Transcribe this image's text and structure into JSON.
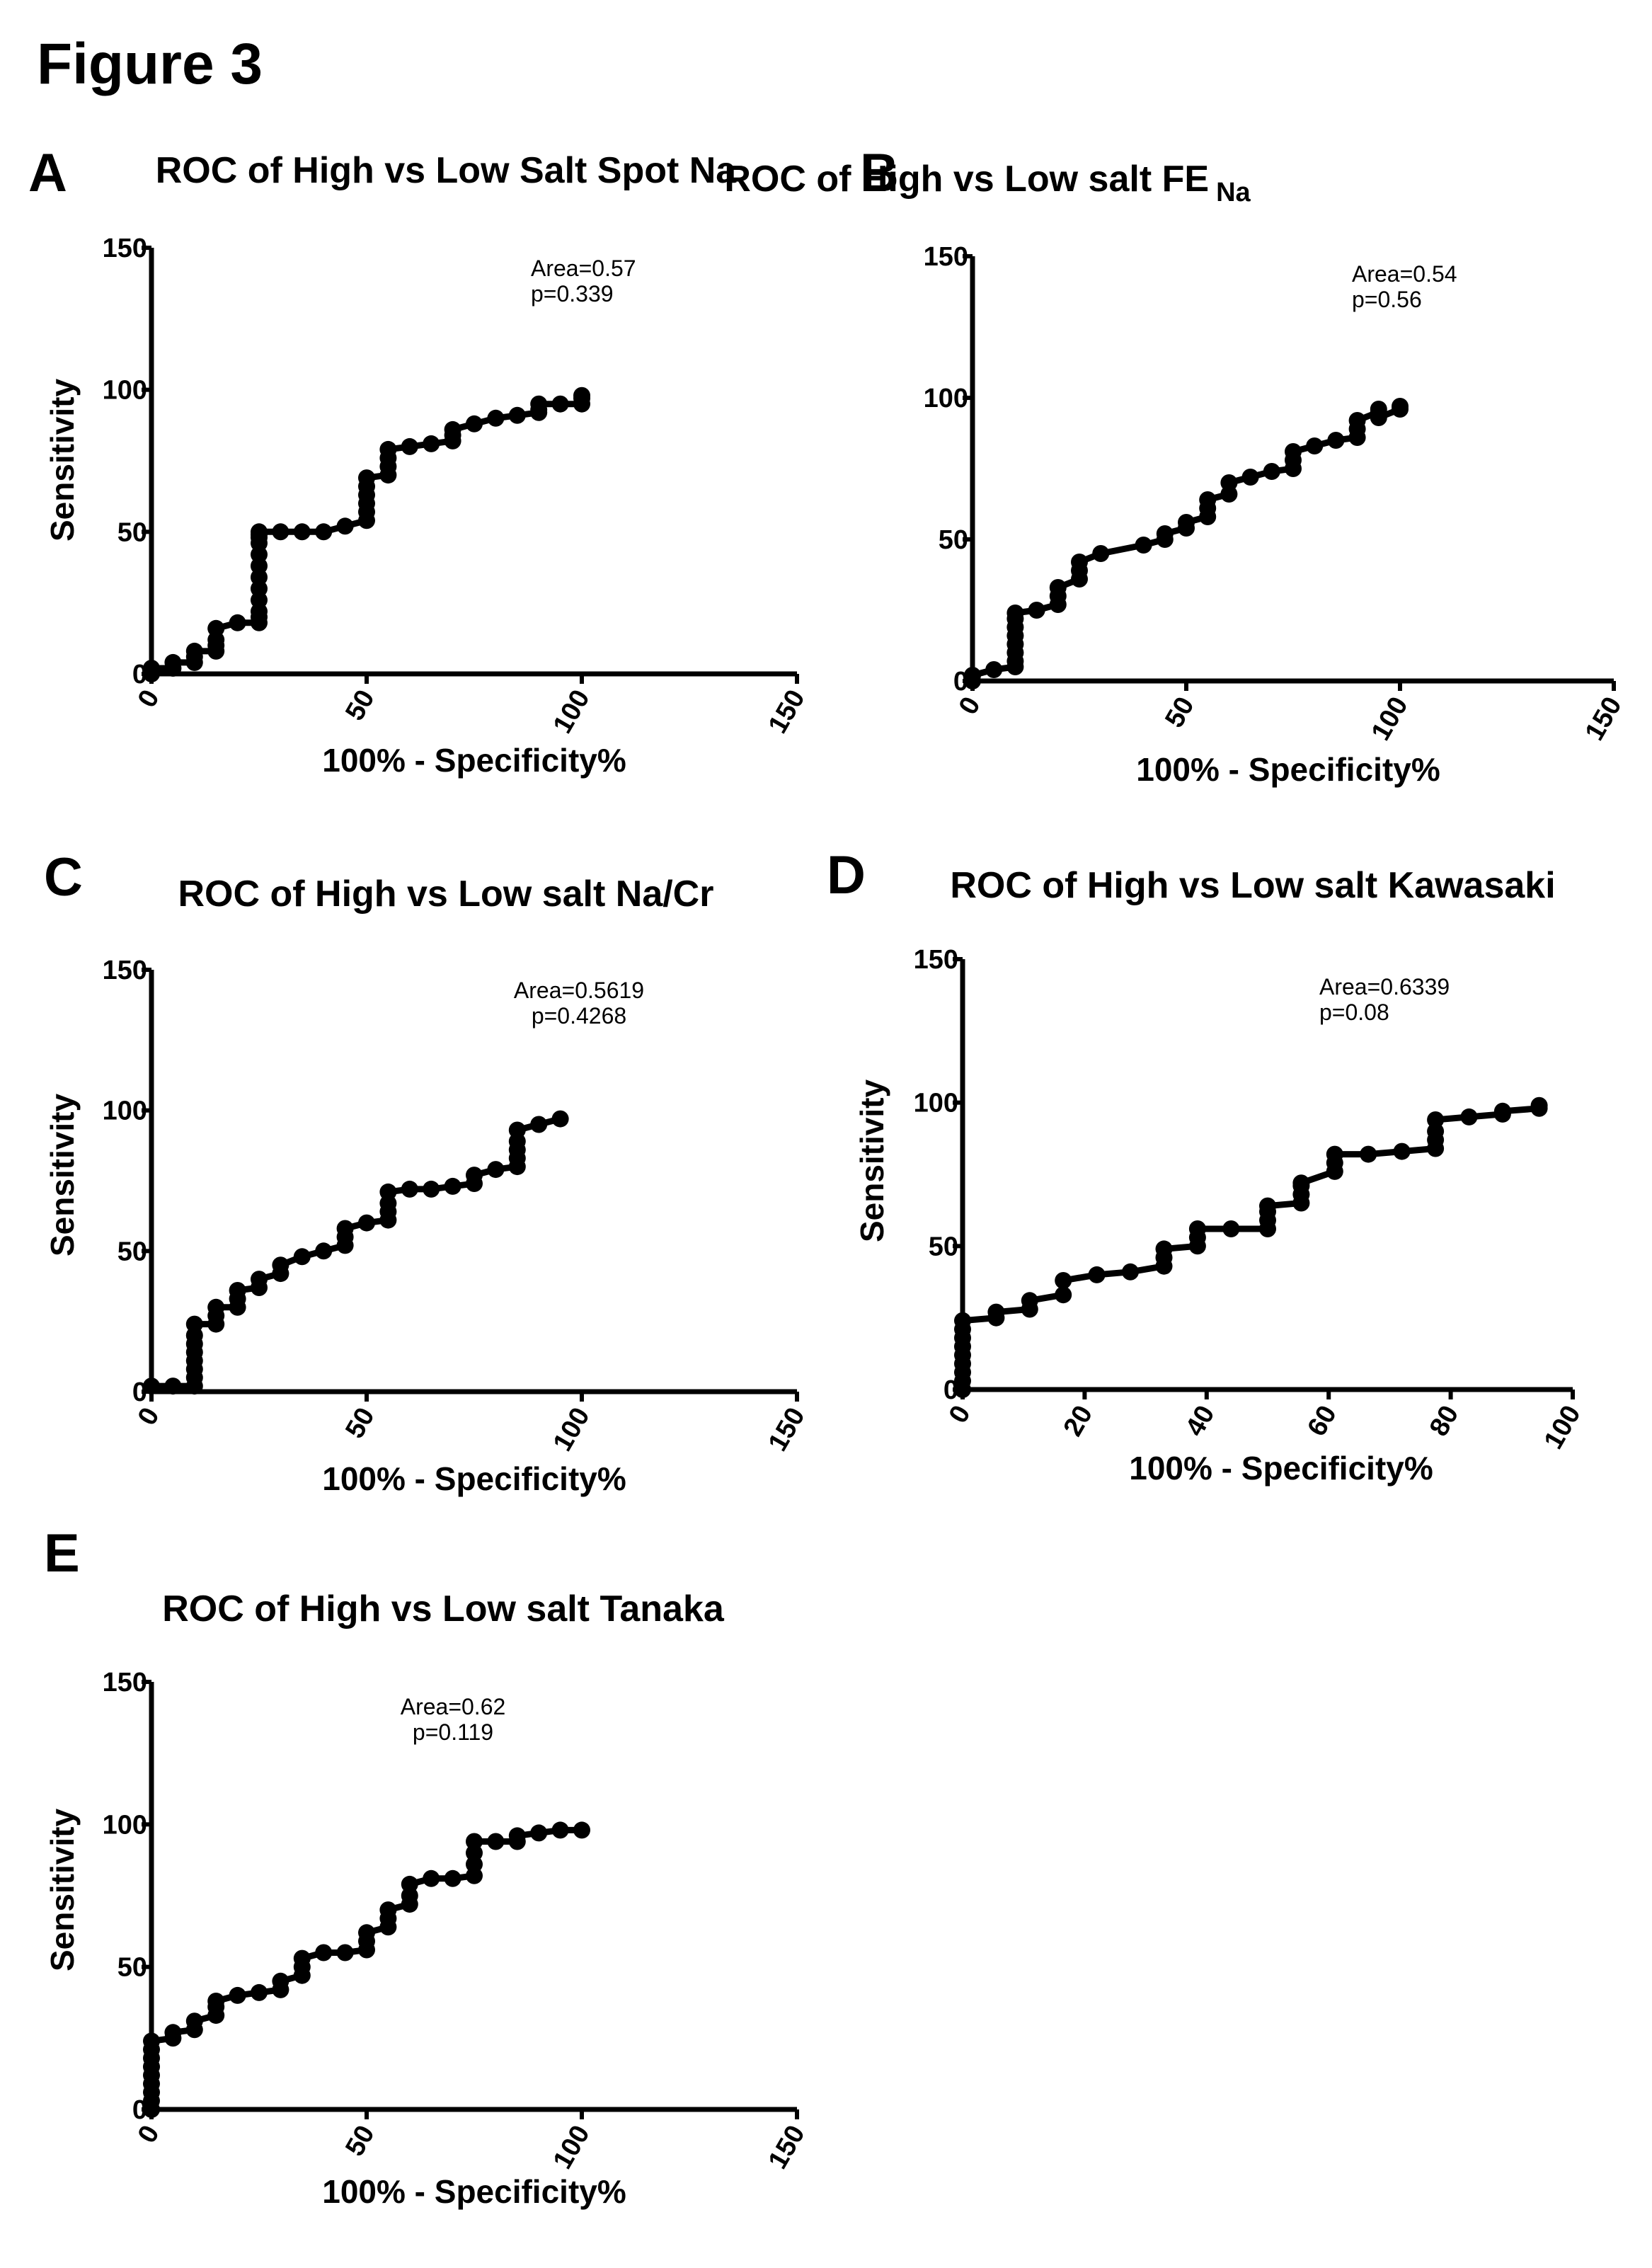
{
  "figure_title": "Figure 3",
  "chart_data": [
    {
      "panel": "A",
      "type": "line",
      "title": "ROC of High vs Low Salt Spot Na",
      "title_sub": "",
      "xlabel": "100% - Specificity%",
      "ylabel": "Sensitivity",
      "xlim": [
        0,
        150
      ],
      "ylim": [
        0,
        150
      ],
      "xticks": [
        0,
        50,
        100,
        150
      ],
      "yticks": [
        0,
        50,
        100,
        150
      ],
      "annotations": [
        "Area=0.57",
        "p=0.339"
      ],
      "series": [
        {
          "x": [
            0,
            0,
            5,
            5,
            10,
            10,
            10,
            15,
            15,
            15,
            15,
            20,
            25,
            25,
            25,
            25,
            25,
            25,
            25,
            25,
            25,
            25,
            25,
            25,
            30,
            35,
            40,
            45,
            50,
            50,
            50,
            50,
            50,
            50,
            55,
            55,
            55,
            55,
            60,
            65,
            70,
            70,
            70,
            75,
            80,
            85,
            90,
            90,
            90,
            95,
            100,
            100,
            100
          ],
          "y": [
            0,
            2,
            2,
            4,
            4,
            6,
            8,
            8,
            10,
            12,
            16,
            18,
            18,
            20,
            22,
            26,
            30,
            34,
            38,
            42,
            46,
            48,
            49,
            50,
            50,
            50,
            50,
            52,
            54,
            57,
            60,
            63,
            66,
            69,
            70,
            73,
            76,
            79,
            80,
            81,
            82,
            84,
            86,
            88,
            90,
            91,
            92,
            93,
            95,
            95,
            95,
            97,
            98
          ]
        }
      ]
    },
    {
      "panel": "B",
      "type": "line",
      "title": "ROC of High vs Low salt FE",
      "title_sub": "Na",
      "xlabel": "100% - Specificity%",
      "ylabel": "",
      "xlim": [
        0,
        150
      ],
      "ylim": [
        0,
        150
      ],
      "xticks": [
        0,
        50,
        100,
        150
      ],
      "yticks": [
        0,
        50,
        100,
        150
      ],
      "annotations": [
        "Area=0.54",
        "p=0.56"
      ],
      "series": [
        {
          "x": [
            0,
            0,
            5,
            10,
            10,
            10,
            10,
            10,
            10,
            10,
            10,
            15,
            20,
            20,
            20,
            25,
            25,
            25,
            30,
            40,
            45,
            45,
            50,
            50,
            55,
            55,
            55,
            60,
            60,
            65,
            70,
            75,
            75,
            75,
            80,
            85,
            90,
            90,
            90,
            95,
            95,
            95,
            100,
            100
          ],
          "y": [
            0,
            2,
            4,
            5,
            7,
            10,
            13,
            16,
            19,
            22,
            24,
            25,
            27,
            30,
            33,
            36,
            39,
            42,
            45,
            48,
            50,
            52,
            54,
            56,
            58,
            61,
            64,
            66,
            70,
            72,
            74,
            75,
            78,
            81,
            83,
            85,
            86,
            89,
            92,
            95,
            96,
            93,
            96,
            97
          ]
        }
      ]
    },
    {
      "panel": "C",
      "type": "line",
      "title": "ROC of High vs Low salt Na/Cr",
      "title_sub": "",
      "xlabel": "100% - Specificity%",
      "ylabel": "Sensitivity",
      "xlim": [
        0,
        150
      ],
      "ylim": [
        0,
        150
      ],
      "xticks": [
        0,
        50,
        100,
        150
      ],
      "yticks": [
        0,
        50,
        100,
        150
      ],
      "annotations": [
        "Area=0.5619",
        "p=0.4268"
      ],
      "series": [
        {
          "x": [
            0,
            5,
            10,
            10,
            10,
            10,
            10,
            10,
            10,
            10,
            15,
            15,
            15,
            20,
            20,
            20,
            25,
            25,
            30,
            30,
            35,
            40,
            45,
            45,
            45,
            50,
            55,
            55,
            55,
            55,
            60,
            65,
            70,
            75,
            75,
            80,
            85,
            85,
            85,
            85,
            85,
            90,
            95
          ],
          "y": [
            2,
            2,
            2,
            5,
            8,
            11,
            14,
            17,
            20,
            24,
            24,
            27,
            30,
            30,
            33,
            36,
            37,
            40,
            42,
            45,
            48,
            50,
            52,
            55,
            58,
            60,
            61,
            64,
            67,
            71,
            72,
            72,
            73,
            74,
            77,
            79,
            80,
            83,
            86,
            89,
            93,
            95,
            97
          ]
        }
      ]
    },
    {
      "panel": "D",
      "type": "line",
      "title": "ROC of High vs Low salt Kawasaki",
      "title_sub": "",
      "xlabel": "100% - Specificity%",
      "ylabel": "Sensitivity",
      "xlim": [
        0,
        100
      ],
      "ylim": [
        0,
        150
      ],
      "xticks": [
        0,
        20,
        40,
        60,
        80,
        100
      ],
      "yticks": [
        0,
        50,
        100,
        150
      ],
      "annotations": [
        "Area=0.6339",
        "p=0.08"
      ],
      "series": [
        {
          "x": [
            0,
            0,
            0,
            0,
            0,
            0,
            0,
            0,
            0,
            5.5,
            5.5,
            11,
            11,
            16.5,
            16.5,
            22,
            27.5,
            33,
            33,
            33,
            38.5,
            38.5,
            38.5,
            44,
            50,
            50,
            50,
            50,
            55.5,
            55.5,
            55.5,
            55.5,
            61,
            61,
            61,
            66.5,
            72,
            77.5,
            77.5,
            77.5,
            77.5,
            83,
            88.5,
            88.5,
            94.5,
            94.5
          ],
          "y": [
            0,
            3,
            6,
            9,
            12,
            15,
            18,
            21,
            24,
            25,
            27,
            28,
            31,
            33,
            38,
            40,
            41,
            43,
            46,
            49,
            50,
            53,
            56,
            56,
            56,
            59,
            62,
            64,
            65,
            68,
            71,
            72,
            76,
            79,
            82,
            82,
            83,
            84,
            87,
            90,
            94,
            95,
            96,
            97,
            98,
            99
          ]
        }
      ]
    },
    {
      "panel": "E",
      "type": "line",
      "title": "ROC of High vs Low salt Tanaka",
      "title_sub": "",
      "xlabel": "100% - Specificity%",
      "ylabel": "Sensitivity",
      "xlim": [
        0,
        150
      ],
      "ylim": [
        0,
        150
      ],
      "xticks": [
        0,
        50,
        100,
        150
      ],
      "yticks": [
        0,
        50,
        100,
        150
      ],
      "annotations": [
        "Area=0.62",
        "p=0.119"
      ],
      "series": [
        {
          "x": [
            0,
            0,
            0,
            0,
            0,
            0,
            0,
            0,
            0,
            5,
            5,
            10,
            10,
            15,
            15,
            15,
            20,
            25,
            30,
            30,
            35,
            35,
            35,
            40,
            45,
            50,
            50,
            50,
            55,
            55,
            55,
            60,
            60,
            60,
            65,
            70,
            75,
            75,
            75,
            75,
            80,
            85,
            85,
            90,
            95,
            100
          ],
          "y": [
            0,
            3,
            6,
            9,
            12,
            15,
            18,
            21,
            24,
            25,
            27,
            28,
            31,
            33,
            36,
            38,
            40,
            41,
            42,
            45,
            47,
            50,
            53,
            55,
            55,
            56,
            59,
            62,
            64,
            67,
            70,
            72,
            75,
            79,
            81,
            81,
            82,
            86,
            90,
            94,
            94,
            94,
            96,
            97,
            98,
            98
          ]
        }
      ]
    }
  ]
}
